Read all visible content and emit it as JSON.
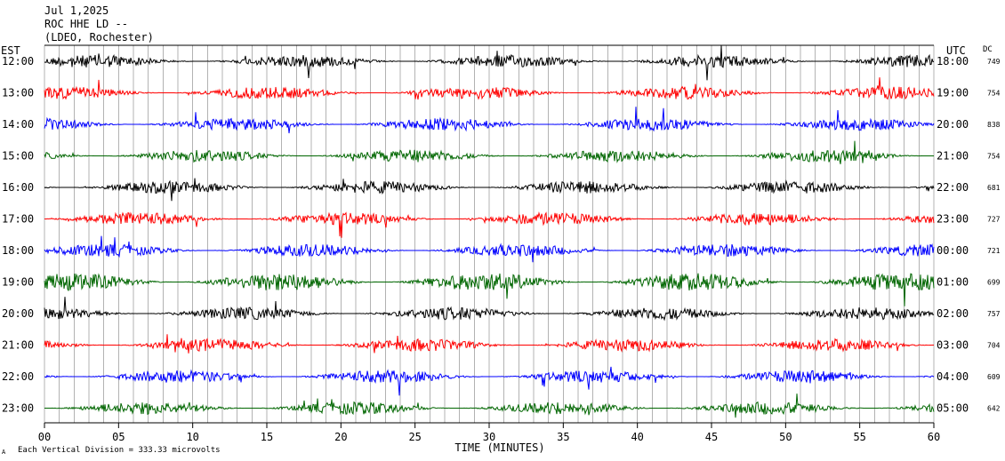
{
  "header": {
    "date": "Jul 1,2025",
    "station": "ROC HHE LD --",
    "network": "(LDEO, Rochester)"
  },
  "left_axis_label": "EST",
  "right_axis_label": "UTC",
  "dc_label": "DC",
  "footer": {
    "note": "Each Vertical Division =  333.33 microvolts",
    "xlabel": "TIME (MINUTES)",
    "mark": "A"
  },
  "chart_data": {
    "type": "line",
    "title": "ROC HHE LD --",
    "xlabel": "TIME (MINUTES)",
    "xlim": [
      0,
      60
    ],
    "x_ticks": [
      "00",
      "05",
      "10",
      "15",
      "20",
      "25",
      "30",
      "35",
      "40",
      "45",
      "50",
      "55",
      "60"
    ],
    "grid": "vertical lines every minute",
    "traces": [
      {
        "est": "12:00",
        "utc": "18:00",
        "dc": "749",
        "color": "#000000"
      },
      {
        "est": "13:00",
        "utc": "19:00",
        "dc": "754",
        "color": "#ff0000"
      },
      {
        "est": "14:00",
        "utc": "20:00",
        "dc": "838",
        "color": "#0000ff"
      },
      {
        "est": "15:00",
        "utc": "21:00",
        "dc": "754",
        "color": "#006600"
      },
      {
        "est": "16:00",
        "utc": "22:00",
        "dc": "681",
        "color": "#000000"
      },
      {
        "est": "17:00",
        "utc": "23:00",
        "dc": "727",
        "color": "#ff0000"
      },
      {
        "est": "18:00",
        "utc": "00:00",
        "dc": "721",
        "color": "#0000ff"
      },
      {
        "est": "19:00",
        "utc": "01:00",
        "dc": "699",
        "color": "#006600"
      },
      {
        "est": "20:00",
        "utc": "02:00",
        "dc": "757",
        "color": "#000000"
      },
      {
        "est": "21:00",
        "utc": "03:00",
        "dc": "704",
        "color": "#ff0000"
      },
      {
        "est": "22:00",
        "utc": "04:00",
        "dc": "609",
        "color": "#0000ff"
      },
      {
        "est": "23:00",
        "utc": "05:00",
        "dc": "642",
        "color": "#006600"
      }
    ]
  }
}
